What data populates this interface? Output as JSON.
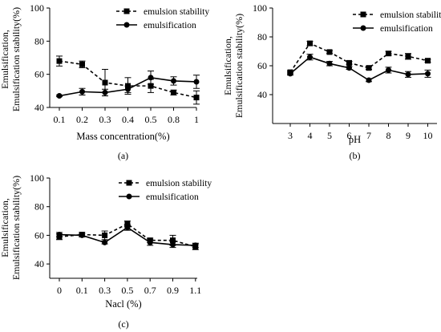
{
  "chart_data": [
    {
      "type": "line",
      "panel_label": "(a)",
      "xlabel": "Mass concentration(%)",
      "ylabel": [
        "Emulsification,",
        "Emulsification stability(%)"
      ],
      "categories": [
        "0.1",
        "0.2",
        "0.3",
        "0.4",
        "0.5",
        "0.8",
        "1"
      ],
      "ylim": [
        40,
        100
      ],
      "yticks": [
        40,
        60,
        80,
        100
      ],
      "legend_position": "top-right",
      "series": [
        {
          "name": "emulsion stability",
          "style": "dashed",
          "marker": "square",
          "values": [
            68,
            66,
            55,
            53,
            53,
            49,
            46
          ],
          "errors": [
            3,
            2,
            8,
            5,
            4,
            1.5,
            4
          ]
        },
        {
          "name": "emulsification",
          "style": "solid",
          "marker": "circle",
          "values": [
            47,
            49.5,
            49,
            51,
            58,
            56,
            55.5
          ],
          "errors": [
            0.5,
            2,
            2,
            2,
            4,
            2.5,
            4
          ]
        }
      ]
    },
    {
      "type": "line",
      "panel_label": "(b)",
      "xlabel": "pH",
      "ylabel": [
        "Emulsification,",
        "Emulsification stability(%)"
      ],
      "categories": [
        "3",
        "4",
        "5",
        "6",
        "7",
        "8",
        "9",
        "10"
      ],
      "ylim": [
        20,
        100
      ],
      "yticks": [
        40,
        60,
        80,
        100
      ],
      "legend_position": "top-right",
      "series": [
        {
          "name": "emulsion stability",
          "style": "dashed",
          "marker": "square",
          "values": [
            55.5,
            75.5,
            69.5,
            62,
            58.5,
            68.5,
            66.5,
            63.5
          ],
          "errors": [
            1,
            1.5,
            1,
            1,
            1,
            1.5,
            2,
            1
          ]
        },
        {
          "name": "emulsification",
          "style": "solid",
          "marker": "circle",
          "values": [
            54.5,
            66,
            61.5,
            58.5,
            50,
            57,
            54,
            54.5
          ],
          "errors": [
            1,
            2,
            1.5,
            1,
            1,
            2,
            2,
            2.5
          ]
        }
      ]
    },
    {
      "type": "line",
      "panel_label": "(c)",
      "xlabel": "Nacl (%)",
      "ylabel": [
        "Emulsification,",
        "Emulsification stability(%)"
      ],
      "categories": [
        "0",
        "0.1",
        "0.3",
        "0.5",
        "0.7",
        "0.9",
        "1.1"
      ],
      "ylim": [
        30,
        100
      ],
      "yticks": [
        40,
        60,
        80,
        100
      ],
      "legend_position": "top-right",
      "series": [
        {
          "name": "emulsion stability",
          "style": "dashed",
          "marker": "square",
          "values": [
            59,
            60.5,
            60,
            68,
            56.5,
            56.5,
            52
          ],
          "errors": [
            2,
            1.5,
            3,
            2,
            1.5,
            3.5,
            2
          ]
        },
        {
          "name": "emulsification",
          "style": "solid",
          "marker": "circle",
          "values": [
            60.5,
            60,
            55,
            65.5,
            55,
            53.5,
            53
          ],
          "errors": [
            1.5,
            1,
            1,
            2,
            2,
            2,
            1.5
          ]
        }
      ]
    }
  ]
}
